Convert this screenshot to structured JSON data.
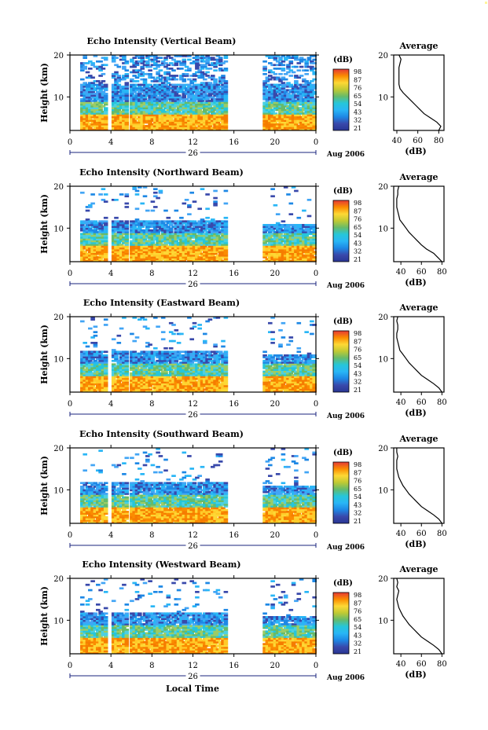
{
  "figure": {
    "x_axis_title": "Local Time",
    "date_label": "Aug 2006",
    "day_label": "26",
    "colorbar_unit": "(dB)",
    "colorbar_ticks": [
      "98",
      "87",
      "76",
      "65",
      "54",
      "43",
      "32",
      "21"
    ],
    "colorbar_colors": [
      "#e53935",
      "#fb8c00",
      "#fdd835",
      "#c0ca33",
      "#66bb6a",
      "#26c6da",
      "#29b6f6",
      "#1e88e5",
      "#3949ab",
      "#283593"
    ],
    "avg_title": "Average",
    "avg_xlabel": "(dB)",
    "y_axis_label": "Height (km)",
    "y_ticks": [
      20,
      10
    ],
    "x_ticks": [
      "0",
      "4",
      "8",
      "12",
      "16",
      "20",
      "0"
    ],
    "gap_hours": [
      [
        3.5,
        3.8
      ],
      [
        5.5,
        5.8
      ],
      [
        15.2,
        18.7
      ]
    ],
    "intensity_colors": {
      "low_height": [
        "#f57c00",
        "#fb8c00",
        "#fdd835",
        "#ffca28"
      ],
      "mid_height": [
        "#9ccc65",
        "#66bb6a",
        "#26c6da",
        "#4dd0e1"
      ],
      "high_height": [
        "#29b6f6",
        "#1e88e5",
        "#42a5f5",
        "#3949ab"
      ]
    }
  },
  "chart_data": [
    {
      "type": "heatmap",
      "title": "Echo Intensity (Vertical Beam)",
      "xlabel": "",
      "ylabel": "Height (km)",
      "xlim": [
        0,
        24
      ],
      "ylim": [
        2,
        20
      ],
      "colorbar_range_dB": [
        21,
        98
      ],
      "average_profile": {
        "xlabel": "(dB)",
        "xticks": [
          40,
          60,
          80
        ],
        "xlim": [
          37,
          85
        ],
        "height_km": [
          2,
          3,
          4,
          5,
          6,
          7,
          8,
          9,
          10,
          11,
          12,
          13,
          14,
          15,
          16,
          17,
          18,
          19,
          20
        ],
        "value_dB": [
          80,
          82,
          78,
          72,
          66,
          62,
          58,
          54,
          50,
          46,
          43,
          42,
          42,
          42,
          42,
          42,
          43,
          44,
          42
        ]
      }
    },
    {
      "type": "heatmap",
      "title": "Echo Intensity (Northward Beam)",
      "xlabel": "",
      "ylabel": "Height (km)",
      "xlim": [
        0,
        24
      ],
      "ylim": [
        2,
        20
      ],
      "colorbar_range_dB": [
        21,
        98
      ],
      "average_profile": {
        "xlabel": "(dB)",
        "xticks": [
          40,
          60,
          80
        ],
        "xlim": [
          33,
          82
        ],
        "height_km": [
          2,
          3,
          4,
          5,
          6,
          7,
          8,
          9,
          10,
          11,
          12,
          13,
          14,
          15,
          16,
          17,
          18,
          19,
          20
        ],
        "value_dB": [
          80,
          76,
          72,
          65,
          60,
          56,
          52,
          48,
          45,
          42,
          39,
          38,
          37,
          36,
          36,
          36,
          37,
          37,
          38
        ]
      }
    },
    {
      "type": "heatmap",
      "title": "Echo Intensity (Eastward Beam)",
      "xlabel": "",
      "ylabel": "Height (km)",
      "xlim": [
        0,
        24
      ],
      "ylim": [
        2,
        20
      ],
      "colorbar_range_dB": [
        21,
        98
      ],
      "average_profile": {
        "xlabel": "(dB)",
        "xticks": [
          40,
          60,
          80
        ],
        "xlim": [
          33,
          82
        ],
        "height_km": [
          2,
          3,
          4,
          5,
          6,
          7,
          8,
          9,
          10,
          11,
          12,
          13,
          14,
          15,
          16,
          17,
          18,
          19,
          20
        ],
        "value_dB": [
          80,
          77,
          72,
          66,
          60,
          56,
          52,
          48,
          45,
          42,
          39,
          38,
          37,
          36,
          36,
          37,
          37,
          36,
          37
        ]
      }
    },
    {
      "type": "heatmap",
      "title": "Echo Intensity (Southward Beam)",
      "xlabel": "",
      "ylabel": "Height (km)",
      "xlim": [
        0,
        24
      ],
      "ylim": [
        2,
        20
      ],
      "colorbar_range_dB": [
        21,
        98
      ],
      "average_profile": {
        "xlabel": "(dB)",
        "xticks": [
          40,
          60,
          80
        ],
        "xlim": [
          33,
          82
        ],
        "height_km": [
          2,
          3,
          4,
          5,
          6,
          7,
          8,
          9,
          10,
          11,
          12,
          13,
          14,
          15,
          16,
          17,
          18,
          19,
          20
        ],
        "value_dB": [
          80,
          77,
          72,
          66,
          60,
          56,
          52,
          48,
          45,
          42,
          40,
          38,
          37,
          36,
          36,
          36,
          37,
          36,
          36
        ]
      }
    },
    {
      "type": "heatmap",
      "title": "Echo Intensity (Westward Beam)",
      "xlabel": "Local Time",
      "ylabel": "Height (km)",
      "xlim": [
        0,
        24
      ],
      "ylim": [
        2,
        20
      ],
      "colorbar_range_dB": [
        21,
        98
      ],
      "average_profile": {
        "xlabel": "(dB)",
        "xticks": [
          40,
          60,
          80
        ],
        "xlim": [
          33,
          82
        ],
        "height_km": [
          2,
          3,
          4,
          5,
          6,
          7,
          8,
          9,
          10,
          11,
          12,
          13,
          14,
          15,
          16,
          17,
          18,
          19,
          20
        ],
        "value_dB": [
          80,
          77,
          72,
          66,
          60,
          56,
          52,
          48,
          45,
          42,
          40,
          38,
          37,
          36,
          37,
          38,
          36,
          37,
          36
        ]
      }
    }
  ]
}
